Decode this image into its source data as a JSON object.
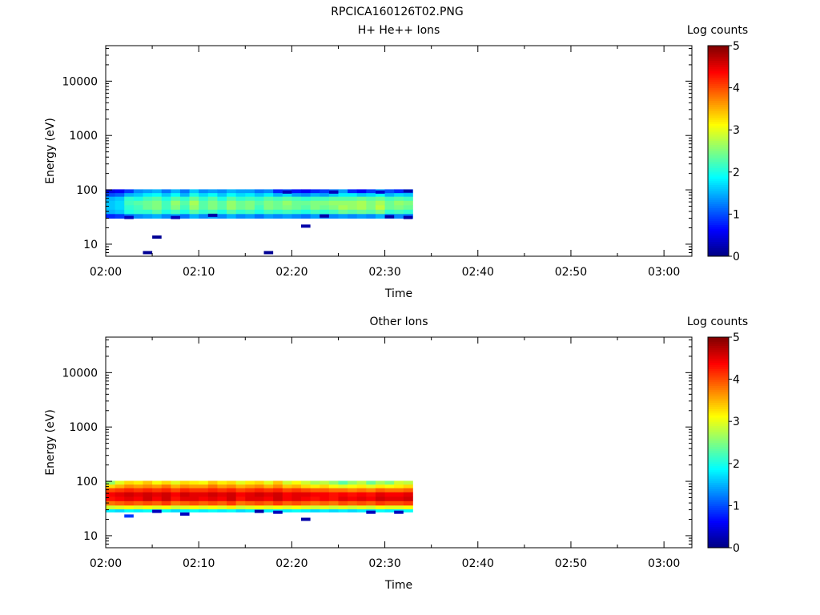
{
  "figure_title": "RPCICA160126T02.PNG",
  "chart_data": [
    {
      "type": "heatmap",
      "title": "H+ He++ Ions",
      "xlabel": "Time",
      "ylabel": "Energy (eV)",
      "x_ticks": [
        "02:00",
        "02:10",
        "02:20",
        "02:30",
        "02:40",
        "02:50",
        "03:00"
      ],
      "y_ticks": [
        "10",
        "100",
        "1000",
        "10000"
      ],
      "y_scale": "log",
      "x_range": [
        "02:00",
        "03:03"
      ],
      "y_range": [
        6,
        45000
      ],
      "colorbar": {
        "label": "Log counts",
        "ticks": [
          "0",
          "1",
          "2",
          "3",
          "4",
          "5"
        ],
        "range": [
          0,
          5
        ],
        "colormap": "jet"
      },
      "time_bins": [
        "02:00",
        "02:01",
        "02:02",
        "02:03",
        "02:04",
        "02:05",
        "02:06",
        "02:07",
        "02:08",
        "02:09",
        "02:10",
        "02:11",
        "02:12",
        "02:13",
        "02:14",
        "02:15",
        "02:16",
        "02:17",
        "02:18",
        "02:19",
        "02:20",
        "02:21",
        "02:22",
        "02:23",
        "02:24",
        "02:25",
        "02:26",
        "02:27",
        "02:28",
        "02:29",
        "02:30",
        "02:31",
        "02:32"
      ],
      "energy_bins_eV": [
        33,
        40,
        48,
        58,
        70,
        82,
        95
      ],
      "values": [
        [
          0.8,
          1.5,
          1.6,
          1.6,
          1.5,
          1.0,
          0.5
        ],
        [
          0.9,
          1.6,
          1.7,
          1.7,
          1.6,
          1.1,
          0.6
        ],
        [
          1.2,
          2.0,
          2.1,
          2.2,
          2.1,
          1.5,
          0.9
        ],
        [
          1.3,
          2.1,
          2.2,
          2.3,
          2.0,
          1.6,
          1.3
        ],
        [
          1.4,
          2.1,
          2.4,
          2.4,
          2.2,
          1.8,
          1.4
        ],
        [
          1.5,
          2.3,
          2.5,
          2.5,
          2.3,
          1.9,
          1.5
        ],
        [
          1.3,
          2.0,
          2.2,
          2.2,
          2.0,
          1.6,
          1.2
        ],
        [
          1.4,
          2.2,
          2.5,
          2.6,
          2.3,
          1.9,
          1.5
        ],
        [
          1.2,
          2.0,
          2.2,
          2.3,
          2.1,
          1.5,
          1.2
        ],
        [
          1.5,
          2.3,
          2.6,
          2.7,
          2.4,
          2.0,
          1.6
        ],
        [
          1.3,
          2.1,
          2.3,
          2.3,
          2.1,
          1.7,
          1.3
        ],
        [
          1.4,
          2.2,
          2.5,
          2.5,
          2.3,
          1.9,
          1.4
        ],
        [
          1.3,
          2.0,
          2.3,
          2.3,
          2.0,
          1.6,
          1.3
        ],
        [
          1.5,
          2.3,
          2.6,
          2.6,
          2.3,
          1.9,
          1.5
        ],
        [
          1.3,
          2.1,
          2.4,
          2.4,
          2.1,
          1.7,
          1.4
        ],
        [
          1.4,
          2.2,
          2.5,
          2.5,
          2.2,
          1.8,
          1.4
        ],
        [
          1.2,
          2.0,
          2.2,
          2.3,
          2.1,
          1.6,
          1.2
        ],
        [
          1.4,
          2.2,
          2.5,
          2.5,
          2.3,
          1.8,
          1.3
        ],
        [
          1.3,
          2.1,
          2.4,
          2.4,
          2.2,
          1.5,
          0.8
        ],
        [
          1.4,
          2.2,
          2.5,
          2.6,
          2.3,
          1.7,
          1.0
        ],
        [
          1.3,
          2.1,
          2.4,
          2.4,
          2.2,
          1.4,
          0.7
        ],
        [
          1.2,
          2.0,
          2.3,
          2.4,
          2.1,
          1.3,
          0.6
        ],
        [
          1.4,
          2.2,
          2.5,
          2.5,
          2.2,
          1.5,
          0.8
        ],
        [
          1.2,
          2.1,
          2.4,
          2.5,
          2.2,
          1.4,
          0.9
        ],
        [
          1.3,
          2.2,
          2.5,
          2.6,
          2.3,
          1.6,
          1.2
        ],
        [
          1.4,
          2.4,
          2.7,
          2.6,
          2.3,
          1.8,
          1.4
        ],
        [
          1.3,
          2.3,
          2.6,
          2.6,
          2.3,
          1.8,
          0.8
        ],
        [
          1.4,
          2.4,
          2.7,
          2.7,
          2.4,
          1.6,
          0.6
        ],
        [
          1.3,
          2.3,
          2.5,
          2.5,
          2.3,
          1.7,
          0.9
        ],
        [
          1.5,
          2.5,
          2.8,
          2.7,
          2.4,
          1.9,
          1.4
        ],
        [
          1.2,
          2.1,
          2.4,
          2.4,
          2.2,
          1.5,
          1.0
        ],
        [
          1.3,
          2.2,
          2.5,
          2.6,
          2.3,
          1.7,
          0.8
        ],
        [
          1.2,
          2.1,
          2.4,
          2.5,
          2.2,
          1.6,
          1.1
        ]
      ],
      "sparse_points": [
        {
          "time": "02:02",
          "energy_eV": 31,
          "value": 0.3
        },
        {
          "time": "02:04",
          "energy_eV": 7,
          "value": 0.1
        },
        {
          "time": "02:05",
          "energy_eV": 13.5,
          "value": 0.1
        },
        {
          "time": "02:07",
          "energy_eV": 31,
          "value": 0.3
        },
        {
          "time": "02:11",
          "energy_eV": 34,
          "value": 0.2
        },
        {
          "time": "02:17",
          "energy_eV": 7,
          "value": 0.1
        },
        {
          "time": "02:19",
          "energy_eV": 91,
          "value": 0.3
        },
        {
          "time": "02:21",
          "energy_eV": 21.5,
          "value": 0.2
        },
        {
          "time": "02:23",
          "energy_eV": 33,
          "value": 0.2
        },
        {
          "time": "02:24",
          "energy_eV": 91,
          "value": 0.3
        },
        {
          "time": "02:29",
          "energy_eV": 91,
          "value": 0.4
        },
        {
          "time": "02:30",
          "energy_eV": 32,
          "value": 0.2
        },
        {
          "time": "02:32",
          "energy_eV": 95,
          "value": 0.2
        },
        {
          "time": "02:32",
          "energy_eV": 31,
          "value": 0.2
        }
      ]
    },
    {
      "type": "heatmap",
      "title": "Other Ions",
      "xlabel": "Time",
      "ylabel": "Energy (eV)",
      "x_ticks": [
        "02:00",
        "02:10",
        "02:20",
        "02:30",
        "02:40",
        "02:50",
        "03:00"
      ],
      "y_ticks": [
        "10",
        "100",
        "1000",
        "10000"
      ],
      "y_scale": "log",
      "x_range": [
        "02:00",
        "03:03"
      ],
      "y_range": [
        6,
        45000
      ],
      "colorbar": {
        "label": "Log counts",
        "ticks": [
          "0",
          "1",
          "2",
          "3",
          "4",
          "5"
        ],
        "range": [
          0,
          5
        ],
        "colormap": "jet"
      },
      "time_bins": [
        "02:00",
        "02:01",
        "02:02",
        "02:03",
        "02:04",
        "02:05",
        "02:06",
        "02:07",
        "02:08",
        "02:09",
        "02:10",
        "02:11",
        "02:12",
        "02:13",
        "02:14",
        "02:15",
        "02:16",
        "02:17",
        "02:18",
        "02:19",
        "02:20",
        "02:21",
        "02:22",
        "02:23",
        "02:24",
        "02:25",
        "02:26",
        "02:27",
        "02:28",
        "02:29",
        "02:30",
        "02:31",
        "02:32"
      ],
      "energy_bins_eV": [
        29,
        33,
        40,
        48,
        58,
        70,
        82,
        95
      ],
      "values": [
        [
          1.8,
          2.9,
          3.8,
          4.3,
          4.4,
          4.0,
          3.3,
          2.6
        ],
        [
          1.7,
          3.0,
          3.9,
          4.4,
          4.5,
          4.1,
          3.5,
          3.0
        ],
        [
          1.9,
          3.1,
          4.0,
          4.5,
          4.6,
          4.2,
          3.7,
          3.3
        ],
        [
          1.8,
          3.0,
          3.9,
          4.4,
          4.5,
          4.1,
          3.6,
          3.2
        ],
        [
          1.9,
          3.1,
          4.0,
          4.6,
          4.6,
          4.2,
          3.7,
          3.4
        ],
        [
          1.8,
          3.0,
          3.9,
          4.4,
          4.5,
          4.1,
          3.6,
          3.1
        ],
        [
          1.9,
          3.1,
          4.1,
          4.6,
          4.6,
          4.2,
          3.8,
          3.3
        ],
        [
          1.7,
          2.9,
          3.8,
          4.3,
          4.4,
          4.0,
          3.5,
          3.0
        ],
        [
          1.8,
          3.0,
          3.9,
          4.5,
          4.6,
          4.2,
          3.7,
          3.3
        ],
        [
          1.9,
          3.1,
          4.0,
          4.5,
          4.5,
          4.1,
          3.6,
          3.2
        ],
        [
          1.8,
          3.0,
          3.9,
          4.4,
          4.5,
          4.1,
          3.6,
          3.1
        ],
        [
          1.9,
          3.1,
          4.0,
          4.5,
          4.6,
          4.2,
          3.8,
          3.4
        ],
        [
          1.8,
          3.0,
          3.9,
          4.4,
          4.5,
          4.1,
          3.6,
          3.2
        ],
        [
          1.9,
          3.2,
          4.1,
          4.6,
          4.6,
          4.2,
          3.7,
          3.3
        ],
        [
          1.7,
          2.9,
          3.8,
          4.3,
          4.4,
          4.0,
          3.5,
          3.0
        ],
        [
          1.8,
          3.0,
          3.9,
          4.5,
          4.5,
          4.1,
          3.6,
          3.2
        ],
        [
          1.9,
          3.1,
          4.0,
          4.5,
          4.6,
          4.2,
          3.7,
          3.3
        ],
        [
          1.8,
          3.0,
          3.9,
          4.4,
          4.5,
          4.1,
          3.5,
          3.0
        ],
        [
          1.9,
          3.1,
          4.1,
          4.6,
          4.6,
          4.2,
          3.7,
          3.4
        ],
        [
          1.8,
          3.0,
          3.9,
          4.4,
          4.4,
          4.0,
          3.4,
          2.9
        ],
        [
          1.9,
          3.1,
          4.0,
          4.5,
          4.5,
          4.1,
          3.5,
          3.1
        ],
        [
          1.8,
          3.0,
          3.9,
          4.4,
          4.5,
          4.0,
          3.3,
          2.9
        ],
        [
          1.7,
          2.9,
          3.8,
          4.3,
          4.4,
          3.9,
          3.2,
          2.7
        ],
        [
          1.8,
          3.0,
          3.9,
          4.4,
          4.4,
          3.9,
          3.3,
          2.8
        ],
        [
          1.7,
          2.9,
          3.8,
          4.3,
          4.3,
          3.8,
          3.1,
          2.6
        ],
        [
          1.8,
          3.0,
          4.0,
          4.5,
          4.4,
          3.8,
          3.0,
          2.3
        ],
        [
          1.7,
          2.9,
          3.9,
          4.4,
          4.3,
          3.7,
          3.1,
          2.6
        ],
        [
          1.8,
          3.0,
          4.0,
          4.5,
          4.4,
          3.8,
          3.2,
          2.8
        ],
        [
          1.7,
          2.9,
          3.9,
          4.4,
          4.3,
          3.7,
          3.0,
          2.4
        ],
        [
          1.9,
          3.1,
          4.1,
          4.6,
          4.5,
          3.9,
          3.2,
          2.7
        ],
        [
          1.8,
          3.0,
          4.0,
          4.5,
          4.4,
          3.8,
          3.1,
          2.5
        ],
        [
          1.8,
          3.0,
          4.0,
          4.5,
          4.4,
          3.8,
          3.2,
          2.9
        ],
        [
          1.9,
          3.1,
          4.1,
          4.6,
          4.5,
          3.9,
          3.3,
          2.8
        ]
      ],
      "sparse_points": [
        {
          "time": "02:02",
          "energy_eV": 23,
          "value": 0.9
        },
        {
          "time": "02:05",
          "energy_eV": 28,
          "value": 0.3
        },
        {
          "time": "02:08",
          "energy_eV": 25,
          "value": 0.3
        },
        {
          "time": "02:16",
          "energy_eV": 28,
          "value": 0.2
        },
        {
          "time": "02:18",
          "energy_eV": 27,
          "value": 0.3
        },
        {
          "time": "02:21",
          "energy_eV": 20,
          "value": 0.2
        },
        {
          "time": "02:28",
          "energy_eV": 27,
          "value": 0.3
        },
        {
          "time": "02:31",
          "energy_eV": 27,
          "value": 0.3
        }
      ]
    }
  ]
}
